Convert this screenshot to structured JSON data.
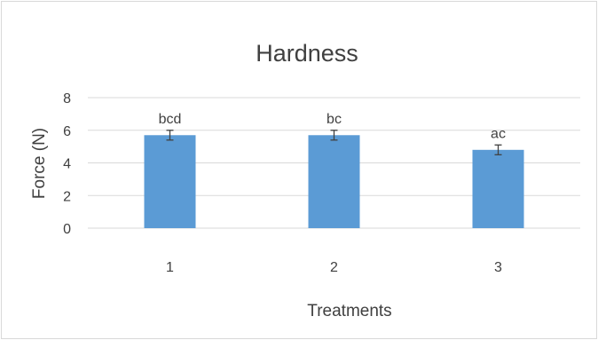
{
  "chart_data": {
    "type": "bar",
    "title": "Hardness",
    "xlabel": "Treatments",
    "ylabel": "Force (N)",
    "categories": [
      "1",
      "2",
      "3"
    ],
    "values": [
      5.7,
      5.7,
      4.8
    ],
    "error": [
      0.3,
      0.3,
      0.3
    ],
    "data_labels": [
      "bcd",
      "bc",
      "ac"
    ],
    "ylim": [
      0,
      8
    ],
    "yticks": [
      0,
      2,
      4,
      6,
      8
    ],
    "grid": true,
    "legend": "none",
    "colors": {
      "bar": "#5b9bd5",
      "grid": "#d9d9d9",
      "text": "#404040",
      "error_bar": "#404040",
      "border": "#d9d9d9"
    }
  }
}
